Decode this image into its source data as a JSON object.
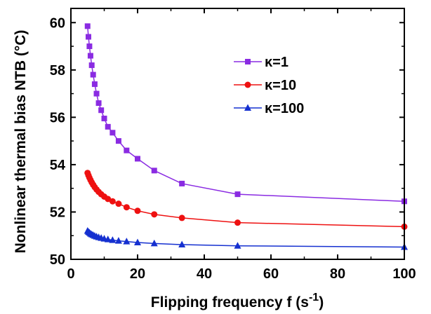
{
  "chart_data": {
    "type": "line",
    "xlabel": "Flipping frequency f (s",
    "xlabel_sup": "-1",
    "xlabel_close": ")",
    "ylabel": "Nonlinear thermal bias NTB (°C)",
    "xlim": [
      0,
      100
    ],
    "ylim": [
      50,
      60.6
    ],
    "x_ticks": [
      0,
      20,
      40,
      60,
      80,
      100
    ],
    "x_tick_labels": [
      "0",
      "20",
      "40",
      "60",
      "80",
      "100"
    ],
    "y_ticks": [
      50,
      52,
      54,
      56,
      58,
      60
    ],
    "y_tick_labels": [
      "50",
      "52",
      "54",
      "56",
      "58",
      "60"
    ],
    "grid": false,
    "legend_position": "top-right",
    "series": [
      {
        "name": "κ=1",
        "color": "#8a2be2",
        "marker": "square",
        "x": [
          5,
          5.26,
          5.56,
          5.88,
          6.25,
          6.67,
          7.14,
          7.69,
          8.33,
          9.09,
          10,
          11.1,
          12.5,
          14.3,
          16.7,
          20,
          25,
          33.3,
          50,
          100
        ],
        "y": [
          59.85,
          59.4,
          59.0,
          58.6,
          58.2,
          57.8,
          57.4,
          57.0,
          56.6,
          56.3,
          55.95,
          55.6,
          55.35,
          55.0,
          54.6,
          54.25,
          53.75,
          53.2,
          52.75,
          52.45
        ]
      },
      {
        "name": "κ=10",
        "color": "#ee1111",
        "marker": "circle",
        "x": [
          5,
          5.26,
          5.56,
          5.88,
          6.25,
          6.67,
          7.14,
          7.69,
          8.33,
          9.09,
          10,
          11.1,
          12.5,
          14.3,
          16.7,
          20,
          25,
          33.3,
          50,
          100
        ],
        "y": [
          53.65,
          53.55,
          53.45,
          53.35,
          53.25,
          53.15,
          53.05,
          52.95,
          52.85,
          52.75,
          52.65,
          52.55,
          52.45,
          52.35,
          52.2,
          52.05,
          51.9,
          51.75,
          51.55,
          51.38
        ]
      },
      {
        "name": "κ=100",
        "color": "#1530d0",
        "marker": "triangle",
        "x": [
          5,
          5.26,
          5.56,
          5.88,
          6.25,
          6.67,
          7.14,
          7.69,
          8.33,
          9.09,
          10,
          11.1,
          12.5,
          14.3,
          16.7,
          20,
          25,
          33.3,
          50,
          100
        ],
        "y": [
          51.2,
          51.16,
          51.12,
          51.08,
          51.05,
          51.02,
          50.99,
          50.96,
          50.93,
          50.9,
          50.87,
          50.84,
          50.81,
          50.78,
          50.75,
          50.71,
          50.67,
          50.62,
          50.57,
          50.52
        ]
      }
    ]
  }
}
